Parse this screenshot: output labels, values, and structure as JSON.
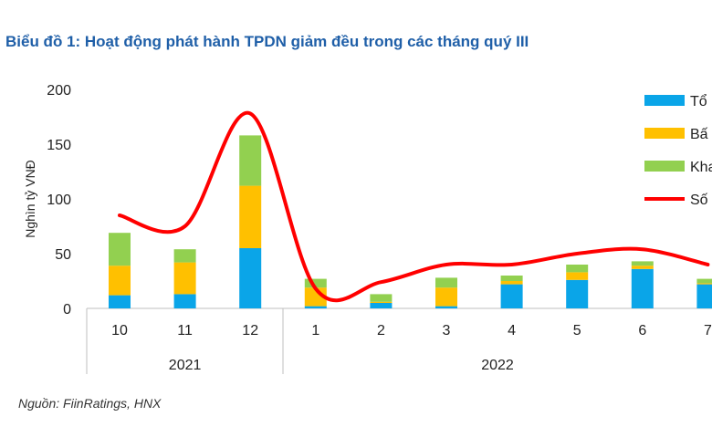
{
  "title": "Biểu đồ 1: Hoạt động phát hành TPDN giảm đều trong các tháng quý III",
  "source": "Nguồn: FiinRatings, HNX",
  "chart_data": {
    "type": "bar",
    "stacked": true,
    "categories": [
      "10",
      "11",
      "12",
      "1",
      "2",
      "3",
      "4",
      "5",
      "6",
      "7"
    ],
    "year_groups": [
      {
        "label": "2021",
        "categories": [
          "10",
          "11",
          "12"
        ]
      },
      {
        "label": "2022",
        "categories": [
          "1",
          "2",
          "3",
          "4",
          "5",
          "6",
          "7"
        ]
      }
    ],
    "series": [
      {
        "name": "Tổ",
        "kind": "bar",
        "color": "#0aa5e8",
        "values": [
          12,
          13,
          55,
          2,
          5,
          2,
          22,
          26,
          36,
          22
        ]
      },
      {
        "name": "Bấ",
        "kind": "bar",
        "color": "#ffc000",
        "values": [
          27,
          29,
          57,
          17,
          1,
          17,
          3,
          7,
          3,
          1
        ]
      },
      {
        "name": "Kha",
        "kind": "bar",
        "color": "#92d050",
        "values": [
          30,
          12,
          46,
          8,
          7,
          9,
          5,
          7,
          4,
          4
        ]
      },
      {
        "name": "Số",
        "kind": "line",
        "color": "#ff0000",
        "values": [
          85,
          75,
          178,
          18,
          24,
          40,
          40,
          50,
          54,
          40
        ]
      }
    ],
    "ylabel": "Nghìn tỷ VNĐ",
    "yticks": [
      0,
      50,
      100,
      150,
      200
    ],
    "ylim": [
      0,
      200
    ],
    "legend_position": "right"
  }
}
